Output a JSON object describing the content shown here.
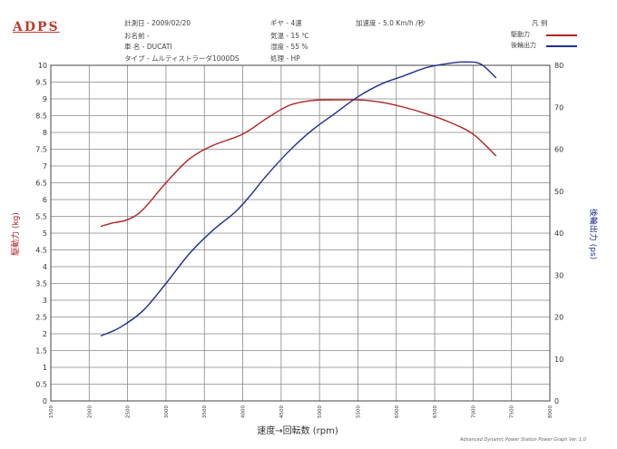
{
  "logo": "ADPS",
  "info": {
    "date": "計測日 - 2009/02/20",
    "name": "お名前 -",
    "vehicle": "車 名 - DUCATI",
    "type": "タイプ - ムルティストラーダ1000DS",
    "gear": "ギヤ - 4速",
    "temp": "気温 - 15 ℃",
    "humidity": "湿度 - 55 %",
    "unit": "処理 - HP",
    "accel": "加速度 - 5.0 Km/h /秒"
  },
  "legend": {
    "title": "凡 例",
    "items": [
      {
        "label": "駆動力",
        "color": "#b22222"
      },
      {
        "label": "後輪出力",
        "color": "#1f2f8f"
      }
    ]
  },
  "footer": "Advanced Dynamic Power Station Power Graph Ver. 1.0",
  "chart_data": {
    "type": "line",
    "xlabel": "速度→回転数 (rpm)",
    "ylabel": "駆動力 (kg)",
    "y2label": "後輪出力 (ps)",
    "xlim": [
      1500,
      8000
    ],
    "ylim": [
      0,
      10
    ],
    "y2lim": [
      0,
      80
    ],
    "x_ticks": [
      "1500",
      "2000",
      "2500",
      "3000",
      "3500",
      "4000",
      "4500",
      "5000",
      "5500",
      "6000",
      "6500",
      "7000",
      "7500",
      "8000"
    ],
    "y_ticks": [
      "0",
      "0.5",
      "1",
      "1.5",
      "2",
      "2.5",
      "3",
      "3.5",
      "4",
      "4.5",
      "5",
      "5.5",
      "6",
      "6.5",
      "7",
      "7.5",
      "8",
      "8.5",
      "9",
      "9.5",
      "10"
    ],
    "y2_ticks": [
      "0",
      "10",
      "20",
      "30",
      "40",
      "50",
      "60",
      "70",
      "80"
    ],
    "grid": true,
    "series": [
      {
        "name": "駆動力",
        "axis": "left",
        "color": "#b22222",
        "x": [
          2150,
          2300,
          2500,
          2700,
          3000,
          3300,
          3600,
          4000,
          4300,
          4600,
          4900,
          5200,
          5500,
          5800,
          6100,
          6400,
          6700,
          7000,
          7300
        ],
        "y": [
          5.2,
          5.3,
          5.4,
          5.7,
          6.5,
          7.2,
          7.6,
          7.95,
          8.4,
          8.8,
          8.95,
          8.97,
          8.97,
          8.9,
          8.75,
          8.55,
          8.3,
          7.95,
          7.3
        ]
      },
      {
        "name": "後輪出力",
        "axis": "right",
        "color": "#1f2f8f",
        "x": [
          2150,
          2400,
          2700,
          3000,
          3300,
          3600,
          3900,
          4100,
          4300,
          4600,
          4900,
          5200,
          5500,
          5800,
          6100,
          6400,
          6700,
          6900,
          7100,
          7300
        ],
        "y": [
          15.5,
          17.5,
          21.5,
          28,
          35,
          40.5,
          45,
          49,
          53.5,
          59.5,
          64.5,
          68.5,
          72.5,
          75.5,
          77.5,
          79.5,
          80.5,
          80.8,
          80.3,
          77
        ]
      }
    ]
  }
}
